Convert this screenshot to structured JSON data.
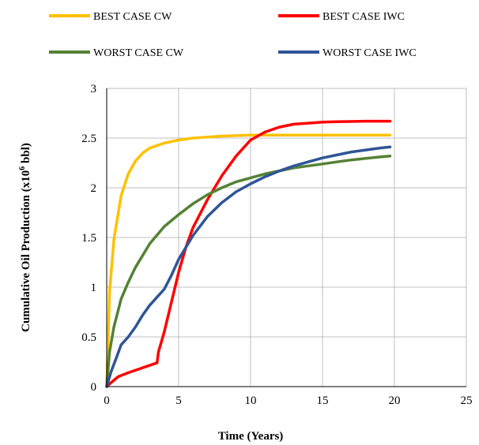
{
  "chart_data": {
    "type": "line",
    "xlabel": "Time (Years)",
    "ylabel_main": "Cumulative Oil Production (x10",
    "ylabel_sup": "6",
    "ylabel_tail": " bbl)",
    "xlim": [
      0,
      25
    ],
    "ylim": [
      0,
      3
    ],
    "xticks": [
      "0",
      "5",
      "10",
      "15",
      "20",
      "25"
    ],
    "yticks": [
      "0",
      "0.5",
      "1",
      "1.5",
      "2",
      "2.5",
      "3"
    ],
    "grid": true,
    "legend_position": "top",
    "series": [
      {
        "name": "BEST CASE CW",
        "color": "#FFC000",
        "x": [
          0,
          0.2,
          0.5,
          1,
          1.5,
          2,
          2.5,
          3,
          4,
          5,
          6,
          7,
          8,
          10,
          12,
          15,
          19.7
        ],
        "y": [
          0,
          0.95,
          1.48,
          1.92,
          2.14,
          2.27,
          2.35,
          2.4,
          2.45,
          2.48,
          2.5,
          2.51,
          2.52,
          2.53,
          2.53,
          2.53,
          2.53
        ]
      },
      {
        "name": "BEST CASE IWC",
        "color": "#FF0000",
        "x": [
          0,
          0.3,
          0.8,
          1.5,
          2.5,
          3.5,
          3.6,
          4.0,
          4.5,
          5,
          5.5,
          6,
          7,
          8,
          9,
          10,
          11,
          12,
          13,
          14,
          15,
          16,
          18,
          19.7
        ],
        "y": [
          0,
          0.04,
          0.1,
          0.14,
          0.19,
          0.24,
          0.35,
          0.55,
          0.85,
          1.15,
          1.4,
          1.6,
          1.88,
          2.12,
          2.32,
          2.48,
          2.56,
          2.61,
          2.64,
          2.65,
          2.66,
          2.665,
          2.67,
          2.67
        ]
      },
      {
        "name": "WORST CASE CW",
        "color": "#548235",
        "x": [
          0,
          0.2,
          0.5,
          1,
          1.5,
          2,
          3,
          4,
          5,
          6,
          7,
          8,
          9,
          10,
          11,
          12,
          13,
          14,
          15,
          16,
          17,
          18,
          19,
          19.7
        ],
        "y": [
          0,
          0.35,
          0.6,
          0.88,
          1.05,
          1.2,
          1.44,
          1.61,
          1.73,
          1.84,
          1.93,
          2.0,
          2.06,
          2.1,
          2.14,
          2.17,
          2.2,
          2.22,
          2.24,
          2.26,
          2.28,
          2.295,
          2.31,
          2.32
        ]
      },
      {
        "name": "WORST CASE IWC",
        "color": "#2F5597",
        "x": [
          0,
          0.3,
          0.7,
          1,
          1.5,
          2,
          2.5,
          3,
          3.5,
          4,
          4.5,
          5,
          5.5,
          6,
          7,
          8,
          9,
          10,
          11,
          12,
          13,
          14,
          15,
          16,
          17,
          18,
          19,
          19.7
        ],
        "y": [
          0,
          0.15,
          0.3,
          0.42,
          0.5,
          0.6,
          0.72,
          0.82,
          0.9,
          0.98,
          1.12,
          1.28,
          1.4,
          1.52,
          1.71,
          1.85,
          1.96,
          2.04,
          2.11,
          2.17,
          2.22,
          2.26,
          2.3,
          2.33,
          2.36,
          2.38,
          2.4,
          2.41
        ]
      }
    ]
  }
}
